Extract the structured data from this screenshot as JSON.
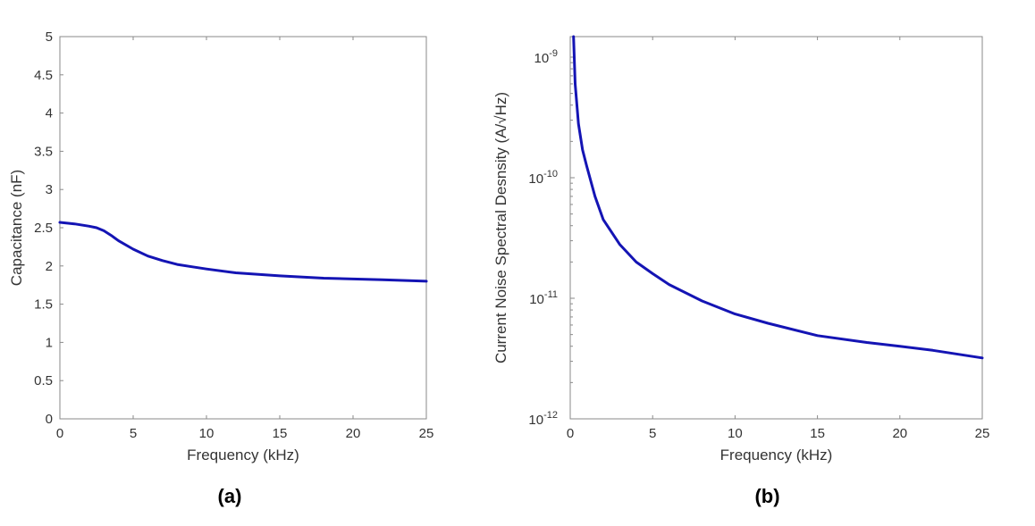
{
  "colors": {
    "line": "#1414b4",
    "axis": "#8a8a8a"
  },
  "chart_data": [
    {
      "type": "line",
      "caption": "(a)",
      "xlabel": "Frequency (kHz)",
      "ylabel": "Capacitance (nF)",
      "xlim": [
        0,
        25
      ],
      "ylim": [
        0,
        5
      ],
      "xticks": [
        "0",
        "5",
        "10",
        "15",
        "20",
        "25"
      ],
      "yticks": [
        "0",
        "0.5",
        "1",
        "1.5",
        "2",
        "2.5",
        "3",
        "3.5",
        "4",
        "4.5",
        "5"
      ],
      "grid": false,
      "x": [
        0,
        1,
        2,
        2.5,
        3,
        3.5,
        4,
        5,
        6,
        7,
        8,
        9,
        10,
        12,
        15,
        18,
        20,
        22,
        25
      ],
      "y": [
        2.57,
        2.55,
        2.52,
        2.5,
        2.46,
        2.4,
        2.33,
        2.22,
        2.13,
        2.07,
        2.02,
        1.99,
        1.96,
        1.91,
        1.87,
        1.84,
        1.83,
        1.82,
        1.8
      ]
    },
    {
      "type": "line",
      "caption": "(b)",
      "xlabel": "Frequency (kHz)",
      "ylabel": "Current Noise Spectral Desnsity (A/√Hz)",
      "xlim": [
        0,
        25
      ],
      "ylim": [
        1e-12,
        1.48e-09
      ],
      "yscale": "log",
      "xticks": [
        "0",
        "5",
        "10",
        "15",
        "20",
        "25"
      ],
      "yticks": [
        {
          "base": "10",
          "exp": "-12",
          "value": 1e-12
        },
        {
          "base": "10",
          "exp": "-11",
          "value": 1e-11
        },
        {
          "base": "10",
          "exp": "-10",
          "value": 1e-10
        },
        {
          "base": "10",
          "exp": "-9",
          "value": 1e-09
        }
      ],
      "grid": false,
      "x": [
        0.2,
        0.3,
        0.5,
        0.75,
        1,
        1.5,
        2,
        3,
        4,
        5,
        6,
        8,
        10,
        12,
        15,
        18,
        20,
        22,
        25
      ],
      "y": [
        1.48e-09,
        6e-10,
        2.8e-10,
        1.7e-10,
        1.25e-10,
        7e-11,
        4.5e-11,
        2.8e-11,
        2e-11,
        1.6e-11,
        1.3e-11,
        9.5e-12,
        7.4e-12,
        6.2e-12,
        4.9e-12,
        4.3e-12,
        4e-12,
        3.7e-12,
        3.2e-12
      ]
    }
  ]
}
